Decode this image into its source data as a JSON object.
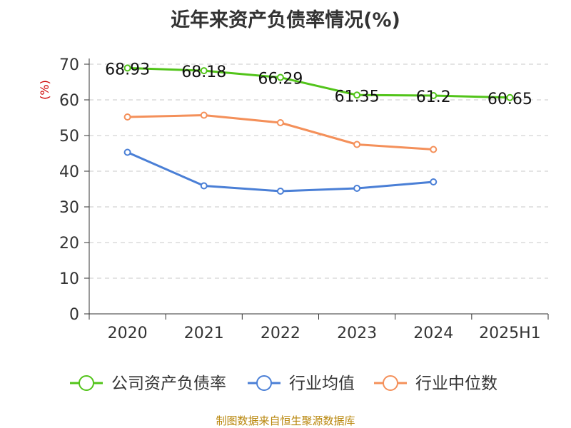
{
  "chart_data": {
    "type": "line",
    "title": "近年来资产负债率情况(%)",
    "unit_label": "(%)",
    "categories": [
      "2020",
      "2021",
      "2022",
      "2023",
      "2024",
      "2025H1"
    ],
    "ylim": [
      0,
      70
    ],
    "yticks": [
      0,
      10,
      20,
      30,
      40,
      50,
      60,
      70
    ],
    "grid": "horizontal dashed",
    "legend_position": "bottom",
    "series": [
      {
        "name": "公司资产负债率",
        "color": "#52c41a",
        "values": [
          68.93,
          68.18,
          66.29,
          61.35,
          61.2,
          60.65
        ],
        "labels": [
          "68.93",
          "68.18",
          "66.29",
          "61.35",
          "61.2",
          "60.65"
        ]
      },
      {
        "name": "行业均值",
        "color": "#4a7fd6",
        "values": [
          45.3,
          35.9,
          34.4,
          35.2,
          37.0,
          null
        ],
        "labels": []
      },
      {
        "name": "行业中位数",
        "color": "#f4905a",
        "values": [
          55.2,
          55.7,
          53.6,
          47.5,
          46.1,
          null
        ],
        "labels": []
      }
    ]
  },
  "source_note": "制图数据来自恒生聚源数据库"
}
